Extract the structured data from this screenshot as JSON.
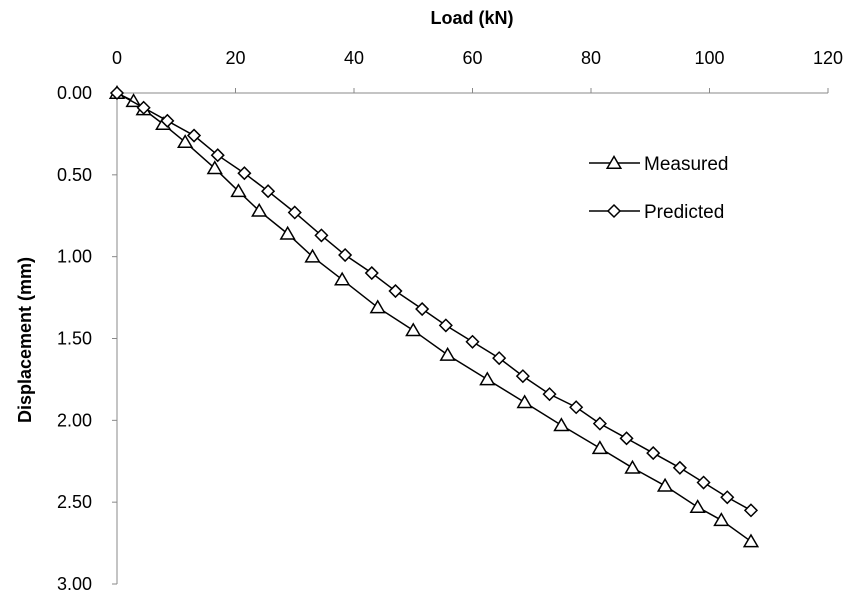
{
  "chart_data": {
    "type": "scatter",
    "title": "",
    "xlabel": "Load (kN)",
    "ylabel": "Displacement (mm)",
    "xlim": [
      0,
      120
    ],
    "ylim": [
      0,
      3
    ],
    "y_inverted": true,
    "x_axis_position": "top",
    "x_ticks": [
      "0",
      "20",
      "40",
      "60",
      "80",
      "100",
      "120"
    ],
    "y_ticks": [
      "0.00",
      "0.50",
      "1.00",
      "1.50",
      "2.00",
      "2.50",
      "3.00"
    ],
    "grid": false,
    "legend_position": "right",
    "series": [
      {
        "name": "Measured",
        "marker": "triangle",
        "x": [
          0,
          2.8,
          4.5,
          7.8,
          11.5,
          16.5,
          20.5,
          24.0,
          28.8,
          33.0,
          38.0,
          44.0,
          50.0,
          55.8,
          62.5,
          68.8,
          75.0,
          81.5,
          87.0,
          92.5,
          98.0,
          102.0,
          107.0
        ],
        "y": [
          0.0,
          0.05,
          0.1,
          0.19,
          0.3,
          0.46,
          0.6,
          0.72,
          0.86,
          1.0,
          1.14,
          1.31,
          1.45,
          1.6,
          1.75,
          1.89,
          2.03,
          2.17,
          2.29,
          2.4,
          2.53,
          2.61,
          2.74
        ]
      },
      {
        "name": "Predicted",
        "marker": "diamond",
        "x": [
          0,
          4.5,
          8.5,
          13.0,
          17.0,
          21.5,
          25.5,
          30.0,
          34.5,
          38.5,
          43.0,
          47.0,
          51.5,
          55.5,
          60.0,
          64.5,
          68.5,
          73.0,
          77.5,
          81.5,
          86.0,
          90.5,
          95.0,
          99.0,
          103.0,
          107.0
        ],
        "y": [
          0.0,
          0.09,
          0.17,
          0.26,
          0.38,
          0.49,
          0.6,
          0.73,
          0.87,
          0.99,
          1.1,
          1.21,
          1.32,
          1.42,
          1.52,
          1.62,
          1.73,
          1.84,
          1.92,
          2.02,
          2.11,
          2.2,
          2.29,
          2.38,
          2.47,
          2.55
        ]
      }
    ]
  }
}
